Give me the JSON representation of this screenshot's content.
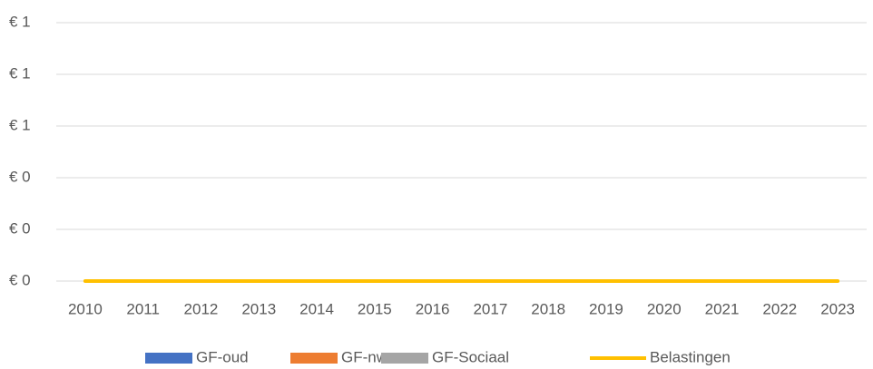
{
  "chart_data": {
    "type": "bar",
    "categories": [
      "2010",
      "2011",
      "2012",
      "2013",
      "2014",
      "2015",
      "2016",
      "2017",
      "2018",
      "2019",
      "2020",
      "2021",
      "2022",
      "2023"
    ],
    "series": [
      {
        "name": "GF-oud",
        "color": "#4472c4",
        "values": [
          0,
          0,
          0,
          0,
          0,
          0,
          0,
          0,
          0,
          0,
          0,
          0,
          0,
          0
        ]
      },
      {
        "name": "GF-nw",
        "color": "#ed7d31",
        "values": [
          0,
          0,
          0,
          0,
          0,
          0,
          0,
          0,
          0,
          0,
          0,
          0,
          0,
          0
        ]
      },
      {
        "name": "GF-Sociaal",
        "color": "#a5a5a5",
        "values": [
          0,
          0,
          0,
          0,
          0,
          0,
          0,
          0,
          0,
          0,
          0,
          0,
          0,
          0
        ]
      },
      {
        "name": "Belastingen",
        "color": "#ffc000",
        "type": "line",
        "values": [
          0,
          0,
          0,
          0,
          0,
          0,
          0,
          0,
          0,
          0,
          0,
          0,
          0,
          0
        ]
      }
    ],
    "ylim": [
      0,
      1
    ],
    "yticks": [
      {
        "value": 0,
        "label": "€ 0"
      },
      {
        "value": 0.2,
        "label": "€ 0"
      },
      {
        "value": 0.4,
        "label": "€ 0"
      },
      {
        "value": 0.6,
        "label": "€ 1"
      },
      {
        "value": 0.8,
        "label": "€ 1"
      },
      {
        "value": 1,
        "label": "€ 1"
      }
    ],
    "grid": true,
    "legend": "bottom"
  }
}
